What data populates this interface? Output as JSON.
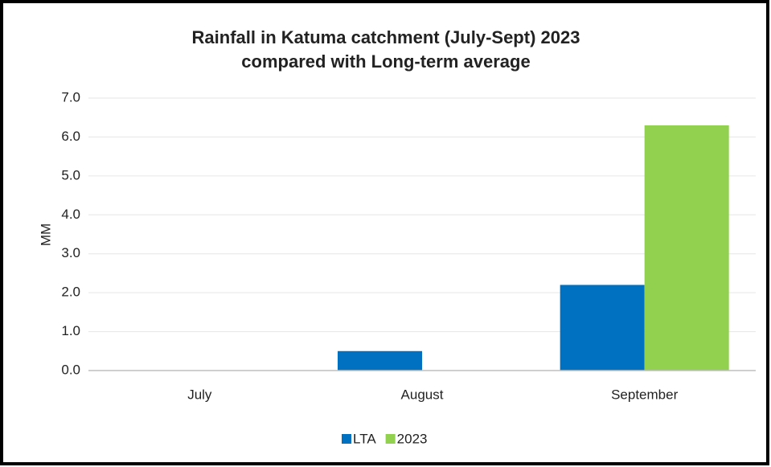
{
  "chart_data": {
    "type": "bar",
    "title": [
      "Rainfall in Katuma catchment (July-Sept) 2023",
      "compared with Long-term average"
    ],
    "y_label": "MM",
    "categories": [
      "July",
      "August",
      "September"
    ],
    "series": [
      {
        "name": "LTA",
        "color": "#0070c0",
        "values": [
          0,
          0.5,
          2.2
        ]
      },
      {
        "name": "2023",
        "color": "#92d050",
        "values": [
          0,
          0,
          6.3
        ]
      }
    ],
    "ylim": [
      0,
      7
    ],
    "yticks": [
      {
        "value": 0,
        "label": "0.0"
      },
      {
        "value": 1,
        "label": "1.0"
      },
      {
        "value": 2,
        "label": "2.0"
      },
      {
        "value": 3,
        "label": "3.0"
      },
      {
        "value": 4,
        "label": "4.0"
      },
      {
        "value": 5,
        "label": "5.0"
      },
      {
        "value": 6,
        "label": "6.0"
      },
      {
        "value": 7,
        "label": "7.0"
      }
    ],
    "grid": true,
    "legend": "bottom"
  }
}
